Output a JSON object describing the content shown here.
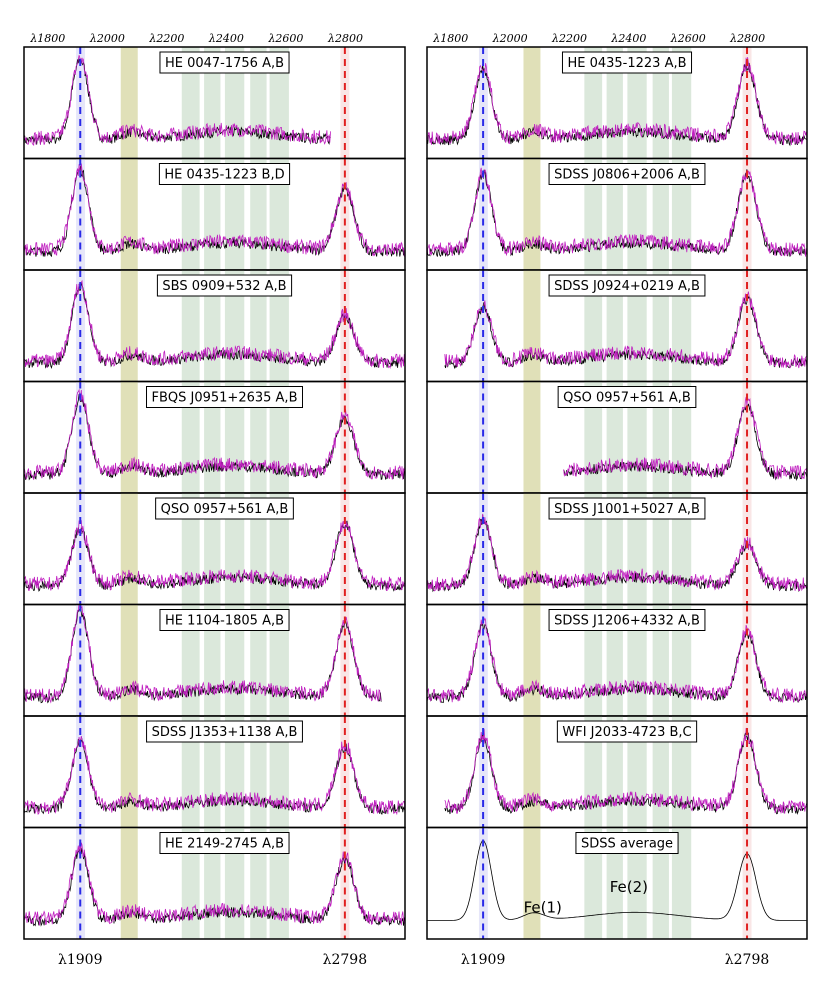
{
  "figure": {
    "top_ticks": [
      "λ1800",
      "λ2000",
      "λ2200",
      "λ2400",
      "λ2600",
      "λ2800"
    ],
    "bottom_labels": [
      "λ1909",
      "λ2798"
    ],
    "colors": {
      "spectrum_a": "#000000",
      "spectrum_b": "#c020c0",
      "line_1909": "#2a2ae8",
      "line_2798": "#e02020",
      "fe_uv": "#d6d6a0",
      "fe_bands": "#cfe0cf"
    }
  },
  "chart_data": [
    {
      "type": "line",
      "column": "left",
      "panels": [
        {
          "title": "HE 0047-1756 A,B",
          "x_end": 2750
        },
        {
          "title": "HE 0435-1223 B,D",
          "x_end": 3000
        },
        {
          "title": "SBS 0909+532 A,B",
          "x_end": 3000
        },
        {
          "title": "FBQS J0951+2635 A,B",
          "x_end": 3000
        },
        {
          "title": "QSO 0957+561 A,B",
          "x_end": 3000
        },
        {
          "title": "HE 1104-1805 A,B",
          "x_end": 2920
        },
        {
          "title": "SDSS J1353+1138 A,B",
          "x_end": 3000
        },
        {
          "title": "HE 2149-2745 A,B",
          "x_end": 3000
        }
      ]
    },
    {
      "type": "line",
      "column": "right",
      "panels": [
        {
          "title": "HE 0435-1223 A,B",
          "x_start": 1720
        },
        {
          "title": "SDSS J0806+2006 A,B",
          "x_start": 1720
        },
        {
          "title": "SDSS J0924+0219 A,B",
          "x_start": 1780
        },
        {
          "title": "QSO 0957+561 A,B",
          "x_start": 2180
        },
        {
          "title": "SDSS J1001+5027 A,B",
          "x_start": 1720
        },
        {
          "title": "SDSS J1206+4332 A,B",
          "x_start": 1720
        },
        {
          "title": "WFI J2033-4723 B,C",
          "x_start": 1780
        },
        {
          "title": "SDSS average",
          "x_start": 1720,
          "annotations": [
            "Fe(1)",
            "Fe(2)"
          ]
        }
      ]
    }
  ],
  "axes": {
    "xlim": [
      1720,
      3000
    ],
    "xticks": [
      1800,
      2000,
      2200,
      2400,
      2600,
      2800
    ],
    "lines": [
      1909,
      2798
    ]
  }
}
